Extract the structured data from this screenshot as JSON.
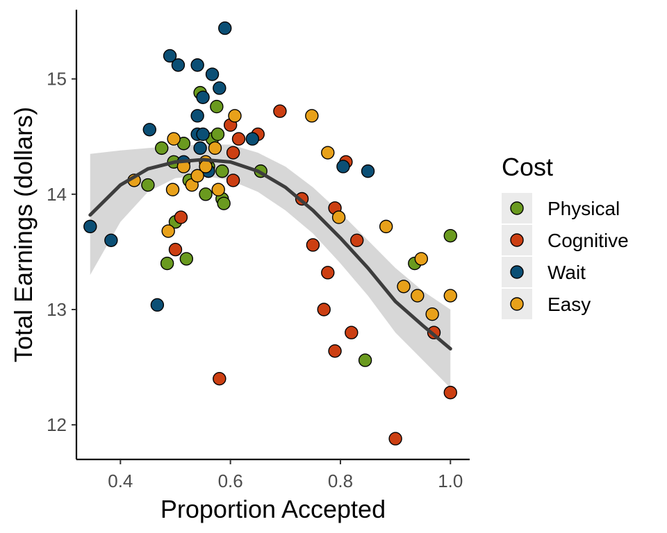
{
  "chart_data": {
    "type": "scatter",
    "xlabel": "Proportion Accepted",
    "ylabel": "Total Earnings (dollars)",
    "xlim": [
      0.32,
      1.035
    ],
    "ylim": [
      11.7,
      15.6
    ],
    "xticks": [
      0.4,
      0.6,
      0.8,
      1.0
    ],
    "xtick_labels": [
      "0.4",
      "0.6",
      "0.8",
      "1.0"
    ],
    "yticks": [
      12,
      13,
      14,
      15
    ],
    "ytick_labels": [
      "12",
      "13",
      "14",
      "15"
    ],
    "grid": false,
    "legend": {
      "title": "Cost",
      "placement": "right"
    },
    "series": [
      {
        "name": "Physical",
        "color": "#6a9a1f",
        "points": [
          [
            0.475,
            14.4
          ],
          [
            0.497,
            14.28
          ],
          [
            0.515,
            14.44
          ],
          [
            0.525,
            14.12
          ],
          [
            0.52,
            13.44
          ],
          [
            0.485,
            13.4
          ],
          [
            0.5,
            13.76
          ],
          [
            0.45,
            14.08
          ],
          [
            0.545,
            14.88
          ],
          [
            0.575,
            14.76
          ],
          [
            0.56,
            14.24
          ],
          [
            0.567,
            14.48
          ],
          [
            0.577,
            14.52
          ],
          [
            0.555,
            14.0
          ],
          [
            0.585,
            13.96
          ],
          [
            0.588,
            13.92
          ],
          [
            0.585,
            14.2
          ],
          [
            0.655,
            14.2
          ],
          [
            0.935,
            13.4
          ],
          [
            1.0,
            13.64
          ],
          [
            0.845,
            12.56
          ]
        ]
      },
      {
        "name": "Cognitive",
        "color": "#cc3f12",
        "points": [
          [
            0.5,
            13.52
          ],
          [
            0.51,
            13.8
          ],
          [
            0.6,
            14.6
          ],
          [
            0.615,
            14.48
          ],
          [
            0.605,
            14.36
          ],
          [
            0.605,
            14.12
          ],
          [
            0.65,
            14.52
          ],
          [
            0.69,
            14.72
          ],
          [
            0.58,
            12.4
          ],
          [
            0.73,
            13.96
          ],
          [
            0.75,
            13.56
          ],
          [
            0.77,
            13.0
          ],
          [
            0.777,
            13.32
          ],
          [
            0.79,
            13.88
          ],
          [
            0.79,
            12.64
          ],
          [
            0.81,
            14.28
          ],
          [
            0.82,
            12.8
          ],
          [
            0.83,
            13.6
          ],
          [
            0.9,
            11.88
          ],
          [
            0.97,
            12.8
          ],
          [
            1.0,
            12.28
          ]
        ]
      },
      {
        "name": "Wait",
        "color": "#0b4f75",
        "points": [
          [
            0.345,
            13.72
          ],
          [
            0.383,
            13.6
          ],
          [
            0.453,
            14.56
          ],
          [
            0.467,
            13.04
          ],
          [
            0.49,
            15.2
          ],
          [
            0.505,
            15.12
          ],
          [
            0.54,
            15.12
          ],
          [
            0.567,
            15.04
          ],
          [
            0.59,
            15.44
          ],
          [
            0.58,
            14.92
          ],
          [
            0.55,
            14.84
          ],
          [
            0.54,
            14.68
          ],
          [
            0.54,
            14.52
          ],
          [
            0.55,
            14.52
          ],
          [
            0.515,
            14.28
          ],
          [
            0.545,
            14.4
          ],
          [
            0.56,
            14.2
          ],
          [
            0.64,
            14.48
          ],
          [
            0.805,
            14.24
          ],
          [
            0.85,
            14.2
          ]
        ]
      },
      {
        "name": "Easy",
        "color": "#e8a11a",
        "points": [
          [
            0.425,
            14.12
          ],
          [
            0.497,
            14.48
          ],
          [
            0.487,
            13.68
          ],
          [
            0.495,
            14.04
          ],
          [
            0.515,
            14.24
          ],
          [
            0.53,
            14.08
          ],
          [
            0.54,
            14.16
          ],
          [
            0.555,
            14.28
          ],
          [
            0.555,
            14.24
          ],
          [
            0.572,
            14.4
          ],
          [
            0.578,
            14.04
          ],
          [
            0.608,
            14.68
          ],
          [
            0.748,
            14.68
          ],
          [
            0.777,
            14.36
          ],
          [
            0.797,
            13.8
          ],
          [
            0.883,
            13.72
          ],
          [
            0.915,
            13.2
          ],
          [
            0.94,
            13.12
          ],
          [
            0.947,
            13.44
          ],
          [
            0.967,
            12.96
          ],
          [
            1.0,
            13.12
          ]
        ]
      }
    ],
    "fit": {
      "type": "quadratic",
      "color": "#3d3d3d",
      "band_color": "#d3d3d3",
      "points": [
        [
          0.345,
          13.82
        ],
        [
          0.4,
          14.08
        ],
        [
          0.45,
          14.22
        ],
        [
          0.5,
          14.28
        ],
        [
          0.55,
          14.3
        ],
        [
          0.6,
          14.28
        ],
        [
          0.65,
          14.2
        ],
        [
          0.7,
          14.06
        ],
        [
          0.75,
          13.86
        ],
        [
          0.8,
          13.62
        ],
        [
          0.85,
          13.36
        ],
        [
          0.9,
          13.07
        ],
        [
          0.95,
          12.86
        ],
        [
          1.0,
          12.66
        ]
      ],
      "band_upper": [
        [
          0.345,
          14.35
        ],
        [
          0.4,
          14.38
        ],
        [
          0.45,
          14.4
        ],
        [
          0.5,
          14.42
        ],
        [
          0.55,
          14.43
        ],
        [
          0.6,
          14.43
        ],
        [
          0.65,
          14.36
        ],
        [
          0.7,
          14.24
        ],
        [
          0.75,
          14.06
        ],
        [
          0.8,
          13.84
        ],
        [
          0.85,
          13.6
        ],
        [
          0.9,
          13.36
        ],
        [
          0.95,
          13.16
        ],
        [
          1.0,
          13.0
        ]
      ],
      "band_lower": [
        [
          0.345,
          13.3
        ],
        [
          0.4,
          13.76
        ],
        [
          0.45,
          14.02
        ],
        [
          0.5,
          14.14
        ],
        [
          0.55,
          14.16
        ],
        [
          0.6,
          14.12
        ],
        [
          0.65,
          14.02
        ],
        [
          0.7,
          13.86
        ],
        [
          0.75,
          13.66
        ],
        [
          0.8,
          13.4
        ],
        [
          0.85,
          13.12
        ],
        [
          0.9,
          12.8
        ],
        [
          0.95,
          12.56
        ],
        [
          1.0,
          12.32
        ]
      ]
    }
  }
}
